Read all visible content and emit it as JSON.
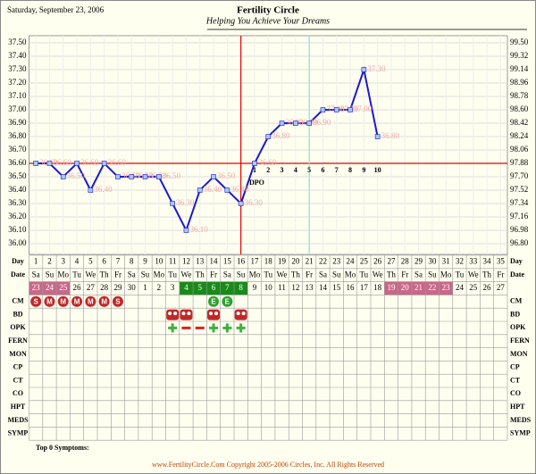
{
  "header": {
    "date": "Saturday, September 23, 2006",
    "title": "Fertility Circle",
    "subtitle": "Helping You Achieve Your Dreams"
  },
  "chart_data": {
    "type": "line",
    "x": [
      1,
      2,
      3,
      4,
      5,
      6,
      7,
      8,
      9,
      10,
      11,
      12,
      13,
      14,
      15,
      16,
      17,
      18,
      19,
      20,
      21,
      22,
      23,
      24,
      25,
      26
    ],
    "values": [
      36.6,
      36.6,
      36.5,
      36.6,
      36.4,
      36.6,
      36.5,
      36.5,
      36.5,
      36.5,
      36.3,
      36.1,
      36.4,
      36.5,
      36.4,
      36.3,
      36.6,
      36.8,
      36.9,
      36.9,
      36.9,
      37.0,
      37.0,
      37.0,
      37.3,
      36.8
    ],
    "value_labels": [
      "36.60",
      "36.60",
      "36.50",
      "36.60",
      "36.40",
      "36.60",
      "36.50",
      "36.50",
      "36.50",
      "36.50",
      "36.30",
      "36.10",
      "36.40",
      "36.50",
      "36.40",
      "36.30",
      "36.60",
      "36.80",
      "36.90",
      "36.90",
      "36.90",
      "37.00",
      "37.00",
      "37.00",
      "37.30",
      "36.80"
    ],
    "color": "#1a1ad0",
    "marker_color": "#a8c8f0",
    "label_color": "#f0a8a8",
    "xlim": [
      0.5,
      35.5
    ],
    "xticks": [
      1,
      2,
      3,
      4,
      5,
      6,
      7,
      8,
      9,
      10,
      11,
      12,
      13,
      14,
      15,
      16,
      17,
      18,
      19,
      20,
      21,
      22,
      23,
      24,
      25,
      26,
      27,
      28,
      29,
      30,
      31,
      32,
      33,
      34,
      35
    ],
    "ylim": [
      36.0,
      37.5
    ],
    "yticks": [
      {
        "value": 36.0,
        "label": "36.00"
      },
      {
        "value": 36.1,
        "label": "36.10"
      },
      {
        "value": 36.2,
        "label": "36.20"
      },
      {
        "value": 36.3,
        "label": "36.30"
      },
      {
        "value": 36.4,
        "label": "36.40"
      },
      {
        "value": 36.5,
        "label": "36.50"
      },
      {
        "value": 36.6,
        "label": "36.60"
      },
      {
        "value": 36.7,
        "label": "36.70"
      },
      {
        "value": 36.8,
        "label": "36.80"
      },
      {
        "value": 36.9,
        "label": "36.90"
      },
      {
        "value": 37.0,
        "label": "37.00"
      },
      {
        "value": 37.1,
        "label": "37.10"
      },
      {
        "value": 37.2,
        "label": "37.20"
      },
      {
        "value": 37.3,
        "label": "37.30"
      },
      {
        "value": 37.4,
        "label": "37.40"
      },
      {
        "value": 37.5,
        "label": "37.50"
      }
    ],
    "y2lim": [
      96.8,
      99.5
    ],
    "y2ticks": [
      {
        "value": 96.8,
        "label": "96.80"
      },
      96.98,
      97.16,
      97.34,
      97.52,
      {
        "value": 97.7,
        "label": "97.70"
      },
      97.88,
      98.06,
      98.24,
      98.42,
      {
        "value": 98.6,
        "label": "98.60"
      },
      98.78,
      98.96,
      99.14,
      99.32,
      {
        "value": 99.5,
        "label": "99.50"
      }
    ],
    "grid": true,
    "reference_lines": [
      {
        "axis": "y",
        "value": 36.6,
        "color": "#e00000"
      },
      {
        "axis": "x",
        "value": 16,
        "color": "#e00000"
      },
      {
        "axis": "x",
        "value": 21,
        "color": "#80e8d8"
      }
    ],
    "dpo": [
      1,
      2,
      3,
      4,
      5,
      6,
      7,
      8,
      9,
      10
    ],
    "dpo_label": "DPO"
  },
  "table": {
    "header_labels": [
      "Day",
      "Date"
    ],
    "weekdays": [
      "Sa",
      "Su",
      "Mo",
      "Tu",
      "We",
      "Th",
      "Fr",
      "Sa",
      "Su",
      "Mo",
      "Tu",
      "We",
      "Th",
      "Fr",
      "Sa",
      "Su",
      "Mo",
      "Tu",
      "We",
      "Th",
      "Fr",
      "Sa",
      "Su",
      "Mo",
      "Tu",
      "We",
      "Th",
      "Fr",
      "Sa",
      "Su",
      "Mo",
      "Tu",
      "We",
      "Th",
      "Fr"
    ],
    "dates": [
      23,
      24,
      25,
      26,
      27,
      28,
      29,
      30,
      1,
      2,
      3,
      4,
      5,
      6,
      7,
      8,
      9,
      10,
      11,
      12,
      13,
      14,
      15,
      16,
      17,
      18,
      19,
      20,
      21,
      22,
      23,
      24,
      25,
      26,
      27
    ],
    "highlights": [
      {
        "from": 1,
        "to": 3,
        "color": "#c86888"
      },
      {
        "from": 12,
        "to": 16,
        "color": "#1a8a1a"
      },
      {
        "from": 27,
        "to": 31,
        "color": "#c86888"
      }
    ],
    "rows": [
      "CM",
      "BD",
      "OPK",
      "FERN",
      "MON",
      "CP",
      "CT",
      "CO",
      "HPT",
      "MEDS",
      "SYMP"
    ],
    "cm": [
      {
        "day": 1,
        "text": "S",
        "color": "#c02828"
      },
      {
        "day": 2,
        "text": "M",
        "color": "#c02828"
      },
      {
        "day": 3,
        "text": "M",
        "color": "#c02828"
      },
      {
        "day": 4,
        "text": "M",
        "color": "#c02828"
      },
      {
        "day": 5,
        "text": "M",
        "color": "#c02828"
      },
      {
        "day": 6,
        "text": "M",
        "color": "#c02828"
      },
      {
        "day": 7,
        "text": "S",
        "color": "#c02828"
      },
      {
        "day": 14,
        "text": "E",
        "color": "#30a030"
      },
      {
        "day": 15,
        "text": "E",
        "color": "#30a030"
      }
    ],
    "bd": [
      11,
      12,
      14,
      16
    ],
    "opk": [
      {
        "day": 11,
        "positive": true
      },
      {
        "day": 12,
        "positive": false
      },
      {
        "day": 13,
        "positive": false
      },
      {
        "day": 14,
        "positive": true
      },
      {
        "day": 15,
        "positive": true
      },
      {
        "day": 16,
        "positive": true
      }
    ]
  },
  "footer": {
    "symptoms": "Top 0 Symptoms:",
    "copyright": "www.FertilityCircle.Com Copyright 2005-2006 Circles, Inc. All Rights Reserved"
  }
}
